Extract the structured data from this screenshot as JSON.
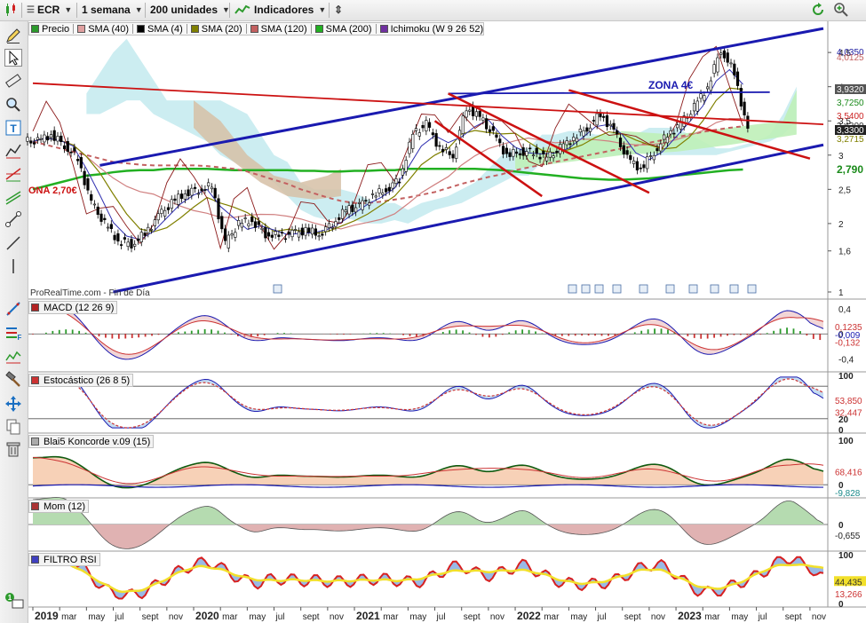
{
  "toolbar_top": {
    "symbol": "ECR",
    "period": "1 semana",
    "units": "200 unidades",
    "indicators": "Indicadores"
  },
  "legend": [
    {
      "label": "Precio",
      "color": "#2c9a2c"
    },
    {
      "label": "SMA (40)",
      "color": "#e0a0a0"
    },
    {
      "label": "SMA (4)",
      "color": "#000000"
    },
    {
      "label": "SMA (20)",
      "color": "#808000"
    },
    {
      "label": "SMA (120)",
      "color": "#c36060"
    },
    {
      "label": "SMA (200)",
      "color": "#22b022"
    },
    {
      "label": "Ichimoku (W 9 26 52)",
      "color": "#7030a0"
    }
  ],
  "watermark": "ProRealTime.com - Fin de Día",
  "annotations": {
    "zona_4": "ZONA 4€",
    "zona_270": "ONA 2,70€"
  },
  "price_axis": {
    "ticks": [
      "4,5",
      "4",
      "3,5",
      "3",
      "2,5",
      "2",
      "1,6",
      "1"
    ],
    "labels": [
      {
        "text": "4,0350",
        "color": "#1a1aa0",
        "bg": "#ffffff"
      },
      {
        "text": "4,0125",
        "color": "#c36060",
        "bg": "#ffffff"
      },
      {
        "text": "3,9320",
        "color": "#ffffff",
        "bg": "#555555"
      },
      {
        "text": "3,7250",
        "color": "#1a8a1a",
        "bg": "#ffffff"
      },
      {
        "text": "3,5400",
        "color": "#cc2222",
        "bg": "#ffffff"
      },
      {
        "text": "3,4300",
        "color": "#333333",
        "bg": "#ffffff"
      },
      {
        "text": "3,3300",
        "color": "#ffffff",
        "bg": "#222222"
      },
      {
        "text": "3,2715",
        "color": "#808000",
        "bg": "#ffffff"
      },
      {
        "text": "2,790",
        "color": "#1a8a1a",
        "bg": "#ffffff"
      }
    ]
  },
  "panels": [
    {
      "id": "macd",
      "title": "MACD (12 26 9)",
      "color": "#b22222",
      "ticks": [
        "0,4",
        "0",
        "-0,4"
      ],
      "values": [
        "0,1235",
        "-0,009",
        "-0,132"
      ]
    },
    {
      "id": "stoch",
      "title": "Estocástico (26 8 5)",
      "color": "#cc3333",
      "ticks": [
        "100",
        "20",
        "0"
      ],
      "values": [
        "53,850",
        "32,447"
      ]
    },
    {
      "id": "koncorde",
      "title": "Blai5 Koncorde v.09 (15)",
      "color": "#aaaaaa",
      "ticks": [
        "100",
        "0"
      ],
      "values": [
        "68,416",
        "-9,828"
      ]
    },
    {
      "id": "mom",
      "title": "Mom (12)",
      "color": "#aa3333",
      "ticks": [
        "0"
      ],
      "values": [
        "-0,655"
      ]
    },
    {
      "id": "rsi",
      "title": "FILTRO RSI",
      "color": "#4040c0",
      "ticks": [
        "100",
        "50",
        "0"
      ],
      "values": [
        "44,435",
        "13,266"
      ]
    }
  ],
  "time_axis": [
    "2019",
    "mar",
    "may",
    "jul",
    "sept",
    "nov",
    "2020",
    "mar",
    "may",
    "jul",
    "sept",
    "nov",
    "2021",
    "mar",
    "may",
    "jul",
    "sept",
    "nov",
    "2022",
    "mar",
    "may",
    "jul",
    "sept",
    "nov",
    "2023",
    "mar",
    "may",
    "jul",
    "sept",
    "nov"
  ],
  "icons": [
    "pencil-icon",
    "cursor-icon",
    "ruler-icon",
    "zoom-icon",
    "text-icon",
    "fibonacci-icon",
    "line-icon",
    "trendline-icon",
    "pitchfork-icon",
    "hammer-icon",
    "move-icon",
    "copy-icon",
    "trash-icon"
  ],
  "chart_data": {
    "type": "candlestick",
    "symbol": "ECR",
    "period": "1 semana",
    "y_range": [
      1,
      4.8
    ],
    "x_range": [
      "2019-01",
      "2023-11"
    ],
    "close_approx": [
      {
        "t": "2019-01",
        "v": 3.2
      },
      {
        "t": "2019-02",
        "v": 3.3
      },
      {
        "t": "2019-03",
        "v": 3.15
      },
      {
        "t": "2019-04",
        "v": 2.95
      },
      {
        "t": "2019-05",
        "v": 2.3
      },
      {
        "t": "2019-06",
        "v": 2.0
      },
      {
        "t": "2019-07",
        "v": 1.75
      },
      {
        "t": "2019-08",
        "v": 1.7
      },
      {
        "t": "2019-09",
        "v": 1.85
      },
      {
        "t": "2019-10",
        "v": 2.1
      },
      {
        "t": "2019-11",
        "v": 2.3
      },
      {
        "t": "2019-12",
        "v": 2.45
      },
      {
        "t": "2020-01",
        "v": 2.5
      },
      {
        "t": "2020-02",
        "v": 2.55
      },
      {
        "t": "2020-03",
        "v": 1.7
      },
      {
        "t": "2020-04",
        "v": 2.0
      },
      {
        "t": "2020-05",
        "v": 2.05
      },
      {
        "t": "2020-06",
        "v": 1.85
      },
      {
        "t": "2020-07",
        "v": 1.82
      },
      {
        "t": "2020-08",
        "v": 1.85
      },
      {
        "t": "2020-09",
        "v": 1.9
      },
      {
        "t": "2020-10",
        "v": 1.85
      },
      {
        "t": "2020-11",
        "v": 2.0
      },
      {
        "t": "2020-12",
        "v": 2.2
      },
      {
        "t": "2021-01",
        "v": 2.25
      },
      {
        "t": "2021-02",
        "v": 2.4
      },
      {
        "t": "2021-03",
        "v": 2.5
      },
      {
        "t": "2021-04",
        "v": 2.65
      },
      {
        "t": "2021-05",
        "v": 3.3
      },
      {
        "t": "2021-06",
        "v": 3.45
      },
      {
        "t": "2021-07",
        "v": 3.1
      },
      {
        "t": "2021-08",
        "v": 3.0
      },
      {
        "t": "2021-09",
        "v": 3.7
      },
      {
        "t": "2021-10",
        "v": 3.55
      },
      {
        "t": "2021-11",
        "v": 3.3
      },
      {
        "t": "2021-12",
        "v": 3.0
      },
      {
        "t": "2022-01",
        "v": 3.05
      },
      {
        "t": "2022-02",
        "v": 3.05
      },
      {
        "t": "2022-03",
        "v": 2.95
      },
      {
        "t": "2022-04",
        "v": 3.1
      },
      {
        "t": "2022-05",
        "v": 3.25
      },
      {
        "t": "2022-06",
        "v": 3.4
      },
      {
        "t": "2022-07",
        "v": 3.6
      },
      {
        "t": "2022-08",
        "v": 3.35
      },
      {
        "t": "2022-09",
        "v": 2.95
      },
      {
        "t": "2022-10",
        "v": 2.8
      },
      {
        "t": "2022-11",
        "v": 3.05
      },
      {
        "t": "2022-12",
        "v": 3.3
      },
      {
        "t": "2023-01",
        "v": 3.45
      },
      {
        "t": "2023-02",
        "v": 3.7
      },
      {
        "t": "2023-03",
        "v": 4.0
      },
      {
        "t": "2023-04",
        "v": 4.55
      },
      {
        "t": "2023-05",
        "v": 4.2
      },
      {
        "t": "2023-06",
        "v": 3.35
      }
    ],
    "last_close": 3.33,
    "annotations": [
      "ZONA 4€",
      "ONA 2,70€"
    ]
  }
}
